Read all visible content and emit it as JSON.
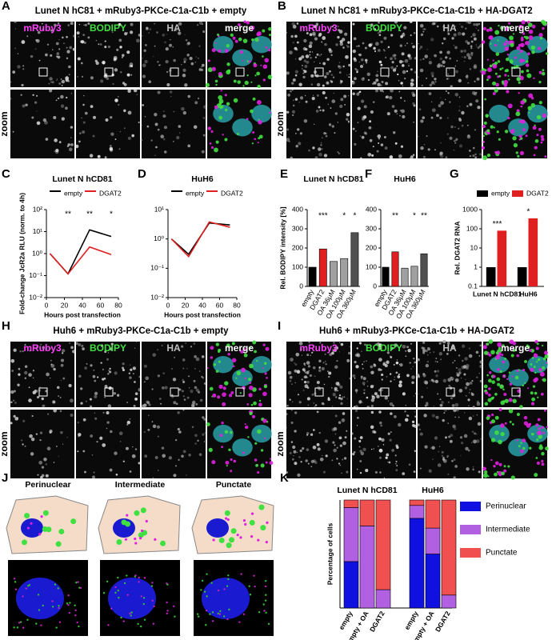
{
  "panels": {
    "A": {
      "letter": "A",
      "title": "Lunet N hC81 + mRuby3-PKCe-C1a-C1b + empty",
      "channels": [
        "mRuby3",
        "BODIPY",
        "HA",
        "merge"
      ],
      "zoom": "zoom"
    },
    "B": {
      "letter": "B",
      "title": "Lunet N hC81 + mRuby3-PKCe-C1a-C1b + HA-DGAT2",
      "channels": [
        "mRuby3",
        "BODIPY",
        "HA",
        "merge"
      ],
      "zoom": "zoom"
    },
    "H": {
      "letter": "H",
      "title": "Huh6 + mRuby3-PKCe-C1a-C1b + empty",
      "channels": [
        "mRuby3",
        "BODIPY",
        "HA",
        "merge"
      ],
      "zoom": "zoom"
    },
    "I": {
      "letter": "I",
      "title": "Huh6 + mRuby3-PKCe-C1a-C1b + HA-DGAT2",
      "channels": [
        "mRuby3",
        "BODIPY",
        "HA",
        "merge"
      ],
      "zoom": "zoom"
    }
  },
  "J": {
    "letter": "J",
    "labels": [
      "Perinuclear",
      "Intermediate",
      "Punctate"
    ]
  },
  "chart_data": [
    {
      "type": "line",
      "letter": "C",
      "title": "Lunet N hCD81",
      "x": [
        4,
        24,
        48,
        72
      ],
      "series": [
        {
          "name": "empty",
          "color": "#000000",
          "values": [
            1,
            0.12,
            12,
            6
          ]
        },
        {
          "name": "DGAT2",
          "color": "#e02020",
          "values": [
            1,
            0.12,
            2,
            0.9
          ]
        }
      ],
      "xlim": [
        0,
        80
      ],
      "xticks": [
        0,
        20,
        40,
        60,
        80
      ],
      "log_y": true,
      "ylim": [
        0.01,
        100
      ],
      "yticks": [
        {
          "value": 0.01,
          "label": "10⁻²"
        },
        {
          "value": 0.1,
          "label": "10⁻¹"
        },
        {
          "value": 1,
          "label": "10⁰"
        },
        {
          "value": 10,
          "label": "10¹"
        },
        {
          "value": 100,
          "label": "10²"
        }
      ],
      "ylabel": "Fold-change JcR2a RLU (norm. to 4h)",
      "xlabel": "Hours post transfection",
      "annotations": [
        {
          "x": 24,
          "text": "**"
        },
        {
          "x": 48,
          "text": "**"
        },
        {
          "x": 72,
          "text": "*"
        }
      ]
    },
    {
      "type": "line",
      "letter": "D",
      "title": "HuH6",
      "x": [
        4,
        24,
        48,
        72
      ],
      "series": [
        {
          "name": "empty",
          "color": "#000000",
          "values": [
            1,
            0.3,
            3.5,
            3
          ]
        },
        {
          "name": "DGAT2",
          "color": "#e02020",
          "values": [
            1,
            0.25,
            3.8,
            2.5
          ]
        }
      ],
      "xlim": [
        0,
        80
      ],
      "xticks": [
        0,
        20,
        40,
        60,
        80
      ],
      "log_y": true,
      "ylim": [
        0.01,
        10
      ],
      "yticks": [
        {
          "value": 0.01,
          "label": "10⁻²"
        },
        {
          "value": 0.1,
          "label": "10⁻¹"
        },
        {
          "value": 1,
          "label": "10⁰"
        },
        {
          "value": 10,
          "label": "10¹"
        }
      ],
      "xlabel": "Hours post transfection"
    },
    {
      "type": "bar",
      "letter": "E",
      "title": "Lunet N hCD81",
      "categories": [
        "empty",
        "DGAT2",
        "OA 36μM",
        "OA 100μM",
        "OA 360μM"
      ],
      "values": [
        100,
        195,
        130,
        145,
        280
      ],
      "colors": [
        "#000000",
        "#e02020",
        "#a0a0a0",
        "#a0a0a0",
        "#505050"
      ],
      "ylim": [
        0,
        400
      ],
      "yticks": [
        0,
        100,
        200,
        300,
        400
      ],
      "ylabel": "Rel. BODIPY intensity [%]",
      "annotations": [
        {
          "category": "DGAT2",
          "text": "***"
        },
        {
          "category": "OA 100μM",
          "text": "*"
        },
        {
          "category": "OA 360μM",
          "text": "*"
        }
      ]
    },
    {
      "type": "bar",
      "letter": "F",
      "title": "HuH6",
      "categories": [
        "empty",
        "DGAT2",
        "OA 36μM",
        "OA 100μM",
        "OA 360μM"
      ],
      "values": [
        100,
        180,
        95,
        105,
        170
      ],
      "colors": [
        "#000000",
        "#e02020",
        "#a0a0a0",
        "#a0a0a0",
        "#505050"
      ],
      "ylim": [
        0,
        400
      ],
      "yticks": [
        0,
        100,
        200,
        300,
        400
      ],
      "annotations": [
        {
          "category": "DGAT2",
          "text": "**"
        },
        {
          "category": "OA 100μM",
          "text": "*"
        },
        {
          "category": "OA 360μM",
          "text": "**"
        }
      ]
    },
    {
      "type": "grouped",
      "letter": "G",
      "categories": [
        "Lunet N hCD81",
        "HuH6"
      ],
      "series": [
        {
          "name": "empty",
          "color": "#000000",
          "values": [
            1,
            1
          ]
        },
        {
          "name": "DGAT2",
          "color": "#e02020",
          "values": [
            80,
            350
          ]
        }
      ],
      "log_y": true,
      "ylim": [
        0.1,
        1000
      ],
      "yticks": [
        0.1,
        1,
        10,
        100,
        1000
      ],
      "ylabel": "Rel. DGAT2 RNA",
      "annotations": [
        {
          "category": "Lunet N hCD81",
          "text": "***"
        },
        {
          "category": "HuH6",
          "text": "*"
        }
      ]
    },
    {
      "type": "stacked",
      "letter": "K",
      "groups": [
        "Lunet N hCD81",
        "HuH6"
      ],
      "categories": [
        "empty",
        "empty + OA",
        "DGAT2",
        "empty",
        "empty + OA",
        "DGAT2"
      ],
      "series": [
        {
          "name": "Perinuclear",
          "color": "#1010e0",
          "values": [
            43,
            0,
            0,
            83,
            50,
            0
          ]
        },
        {
          "name": "Intermediate",
          "color": "#b060e0",
          "values": [
            50,
            76,
            17,
            12,
            24,
            12
          ]
        },
        {
          "name": "Punctate",
          "color": "#f05050",
          "values": [
            7,
            24,
            83,
            5,
            26,
            88
          ]
        }
      ],
      "ylim": [
        0,
        100
      ],
      "ylabel": "Percentage of cells"
    }
  ]
}
